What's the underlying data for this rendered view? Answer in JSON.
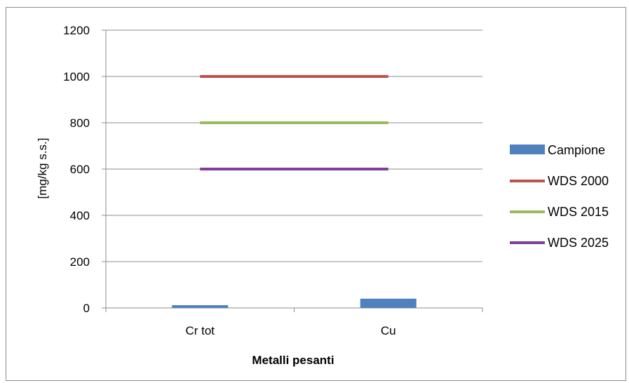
{
  "chart_data": {
    "type": "bar",
    "title": "",
    "xlabel": "Metalli pesanti",
    "ylabel": "[mg/kg s.s.]",
    "categories": [
      "Cr tot",
      "Cu"
    ],
    "ylim": [
      0,
      1200
    ],
    "yticks": [
      "0",
      "200",
      "400",
      "600",
      "800",
      "1000",
      "1200"
    ],
    "grid": true,
    "legend_position": "right",
    "series": [
      {
        "name": "Campione",
        "kind": "bar",
        "color": "#4f81bd",
        "values": [
          12,
          40
        ]
      },
      {
        "name": "WDS 2000",
        "kind": "line",
        "color": "#c0504d",
        "values": [
          1000,
          1000
        ]
      },
      {
        "name": "WDS 2015",
        "kind": "line",
        "color": "#9bbb59",
        "values": [
          800,
          800
        ]
      },
      {
        "name": "WDS 2025",
        "kind": "line",
        "color": "#7f3f98",
        "values": [
          600,
          600
        ]
      }
    ]
  }
}
